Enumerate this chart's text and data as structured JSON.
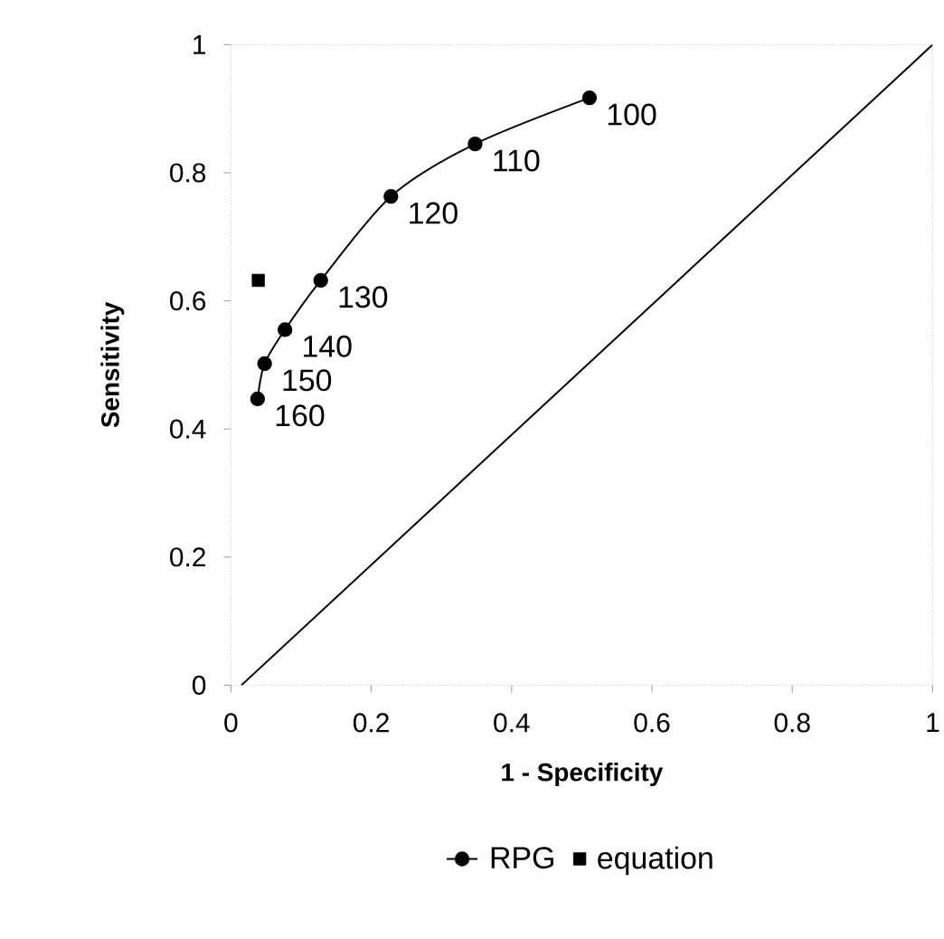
{
  "chart_data": {
    "type": "line",
    "xlabel": "1 - Specificity",
    "ylabel": "Sensitivity",
    "xlim": [
      0,
      1
    ],
    "ylim": [
      0,
      1
    ],
    "xticks": [
      0,
      0.2,
      0.4,
      0.6,
      0.8,
      1
    ],
    "yticks": [
      0,
      0.2,
      0.4,
      0.6,
      0.8,
      1
    ],
    "grid": false,
    "legend": "bottom",
    "series": [
      {
        "name": "RPG",
        "color": "#000000",
        "marker": "circle",
        "line_style": "solid",
        "x": [
          0.511,
          0.348,
          0.228,
          0.128,
          0.077,
          0.048,
          0.038
        ],
        "values": [
          0.917,
          0.845,
          0.763,
          0.632,
          0.555,
          0.502,
          0.447
        ]
      },
      {
        "name": "equation",
        "type": "scatter",
        "color": "#000000",
        "marker": "square",
        "x": [
          0.039
        ],
        "values": [
          0.632
        ]
      },
      {
        "type": "line",
        "color": "#000000",
        "marker": "none",
        "line_style": "solid",
        "x": [
          0.015,
          1
        ],
        "values": [
          0,
          1
        ]
      }
    ],
    "annotations": [
      {
        "text": "100",
        "x": 0.511,
        "y": 0.917
      },
      {
        "text": "110",
        "x": 0.348,
        "y": 0.845
      },
      {
        "text": "120",
        "x": 0.228,
        "y": 0.763
      },
      {
        "text": "130",
        "x": 0.128,
        "y": 0.632
      },
      {
        "text": "140",
        "x": 0.077,
        "y": 0.555
      },
      {
        "text": "150",
        "x": 0.048,
        "y": 0.502
      },
      {
        "text": "160",
        "x": 0.038,
        "y": 0.447
      }
    ]
  }
}
